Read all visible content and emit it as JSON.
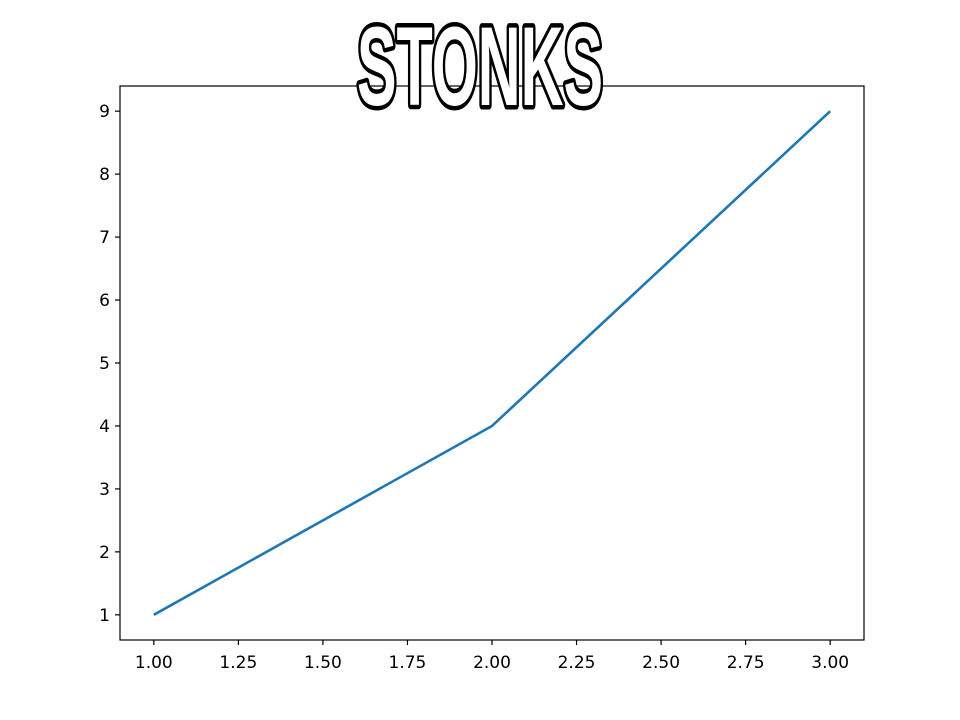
{
  "chart_data": {
    "type": "line",
    "title": "STONKS",
    "xlabel": "",
    "ylabel": "",
    "x": [
      1,
      2,
      3
    ],
    "series": [
      {
        "values": [
          1,
          4,
          9
        ],
        "color": "#1f77b4"
      }
    ],
    "xlim": [
      0.9,
      3.1
    ],
    "ylim": [
      0.6,
      9.4
    ],
    "xticks": [
      "1.00",
      "1.25",
      "1.50",
      "1.75",
      "2.00",
      "2.25",
      "2.50",
      "2.75",
      "3.00"
    ],
    "yticks": [
      "1",
      "2",
      "3",
      "4",
      "5",
      "6",
      "7",
      "8",
      "9"
    ],
    "grid": false
  }
}
